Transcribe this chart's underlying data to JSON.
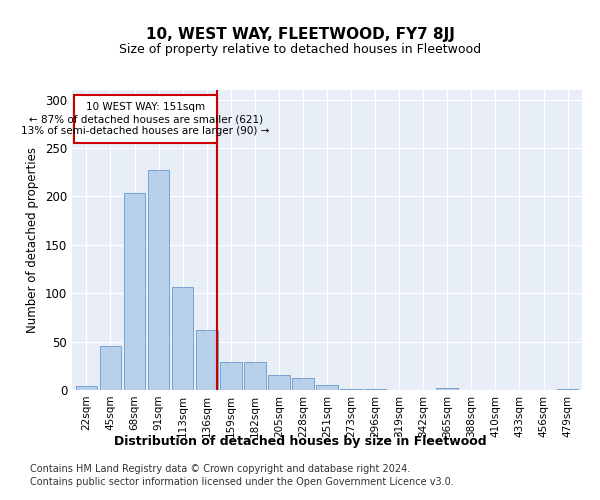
{
  "title": "10, WEST WAY, FLEETWOOD, FY7 8JJ",
  "subtitle": "Size of property relative to detached houses in Fleetwood",
  "xlabel": "Distribution of detached houses by size in Fleetwood",
  "ylabel": "Number of detached properties",
  "categories": [
    "22sqm",
    "45sqm",
    "68sqm",
    "91sqm",
    "113sqm",
    "136sqm",
    "159sqm",
    "182sqm",
    "205sqm",
    "228sqm",
    "251sqm",
    "273sqm",
    "296sqm",
    "319sqm",
    "342sqm",
    "365sqm",
    "388sqm",
    "410sqm",
    "433sqm",
    "456sqm",
    "479sqm"
  ],
  "values": [
    4,
    45,
    204,
    227,
    106,
    62,
    29,
    29,
    15,
    12,
    5,
    1,
    1,
    0,
    0,
    2,
    0,
    0,
    0,
    0,
    1
  ],
  "bar_color": "#b8d0ea",
  "bar_edge_color": "#6699cc",
  "background_color": "#e8eef8",
  "grid_color": "#ffffff",
  "red_line_color": "#cc0000",
  "annotation_text": "10 WEST WAY: 151sqm\n← 87% of detached houses are smaller (621)\n13% of semi-detached houses are larger (90) →",
  "annotation_box_edgecolor": "#cc0000",
  "ylim": [
    0,
    310
  ],
  "yticks": [
    0,
    50,
    100,
    150,
    200,
    250,
    300
  ],
  "footnote1": "Contains HM Land Registry data © Crown copyright and database right 2024.",
  "footnote2": "Contains public sector information licensed under the Open Government Licence v3.0.",
  "fig_bg": "#ffffff",
  "red_line_x": 5.42
}
